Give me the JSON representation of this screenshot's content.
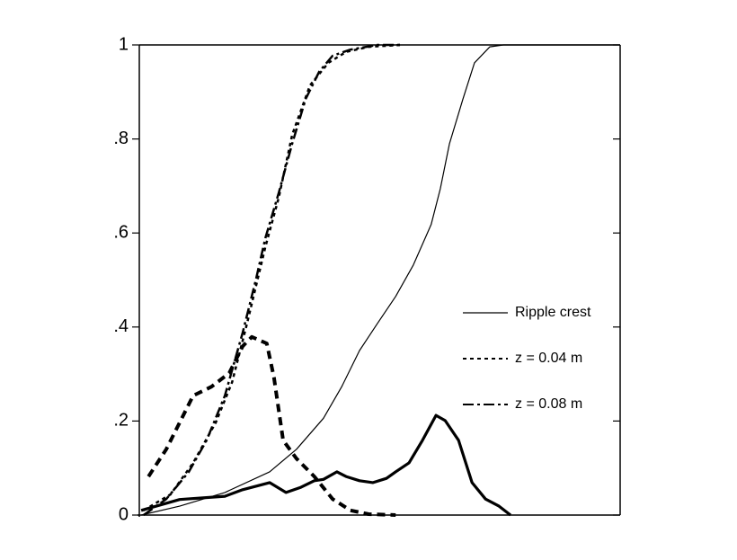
{
  "chart_data": {
    "type": "line",
    "xlim": [
      0,
      100
    ],
    "ylim": [
      0,
      1
    ],
    "yticks": [
      0,
      {
        "value": 0.2,
        "label": ".2"
      },
      {
        "value": 0.4,
        "label": ".4"
      },
      {
        "value": 0.6,
        "label": ".6"
      },
      {
        "value": 0.8,
        "label": ".8"
      },
      1
    ],
    "legend": "right",
    "series": [
      {
        "name": "Ripple crest",
        "color": "#000000",
        "style": "solid",
        "width": 1.2,
        "x": [
          0.4,
          8.4,
          17.8,
          27.1,
          32.7,
          38.3,
          42.1,
          45.8,
          49.5,
          53.3,
          57.0,
          60.7,
          62.6,
          64.5,
          67.3,
          69.7,
          72.9,
          75.7,
          100
        ],
        "values": [
          0,
          0.019,
          0.048,
          0.092,
          0.14,
          0.206,
          0.273,
          0.35,
          0.407,
          0.465,
          0.532,
          0.618,
          0.694,
          0.79,
          0.885,
          0.962,
          0.996,
          1,
          1
        ]
      },
      {
        "name": "z = 0.04 m",
        "color": "#000000",
        "style": "dotted",
        "width": 2.5,
        "x": [
          0.9,
          6.5,
          11.2,
          15.9,
          19.3,
          22.4,
          26.2,
          29.0,
          31.8,
          35.5,
          39.3,
          43.0,
          47.7,
          54.2
        ],
        "values": [
          0.01,
          0.044,
          0.111,
          0.197,
          0.283,
          0.407,
          0.57,
          0.675,
          0.809,
          0.914,
          0.962,
          0.985,
          0.996,
          1
        ]
      },
      {
        "name": "z = 0.08 m",
        "color": "#000000",
        "style": "dashdot",
        "width": 2.5,
        "x": [
          0.9,
          5.6,
          10.3,
          14.0,
          17.8,
          21.5,
          24.3,
          26.2,
          29.0,
          31.8,
          34.6,
          37.4,
          40.2,
          43.9,
          49.5,
          54.2
        ],
        "values": [
          0,
          0.034,
          0.092,
          0.159,
          0.254,
          0.388,
          0.503,
          0.589,
          0.685,
          0.79,
          0.885,
          0.943,
          0.977,
          0.99,
          1,
          1
        ]
      },
      {
        "color": "#000000",
        "style": "solid",
        "width": 3.2,
        "x": [
          0.4,
          8.4,
          17.8,
          21.5,
          27.1,
          30.5,
          33.6,
          36.4,
          38.3,
          41.1,
          43.0,
          45.8,
          48.6,
          51.4,
          53.3,
          56.1,
          58.9,
          61.7,
          63.6,
          66.4,
          69.2,
          72.0,
          74.8,
          77.2
        ],
        "values": [
          0.01,
          0.033,
          0.04,
          0.054,
          0.069,
          0.048,
          0.059,
          0.073,
          0.076,
          0.092,
          0.082,
          0.073,
          0.069,
          0.078,
          0.092,
          0.111,
          0.159,
          0.212,
          0.201,
          0.159,
          0.069,
          0.034,
          0.019,
          0
        ]
      },
      {
        "color": "#000000",
        "style": "dashed",
        "width": 4,
        "x": [
          1.9,
          5.6,
          11.2,
          15.0,
          18.7,
          21.5,
          23.4,
          26.5,
          28.0,
          29.9,
          32.7,
          36.4,
          40.2,
          43.9,
          47.7,
          53.3
        ],
        "values": [
          0.082,
          0.14,
          0.254,
          0.273,
          0.302,
          0.359,
          0.379,
          0.365,
          0.293,
          0.159,
          0.12,
          0.082,
          0.034,
          0.01,
          0.002,
          0
        ]
      }
    ]
  }
}
